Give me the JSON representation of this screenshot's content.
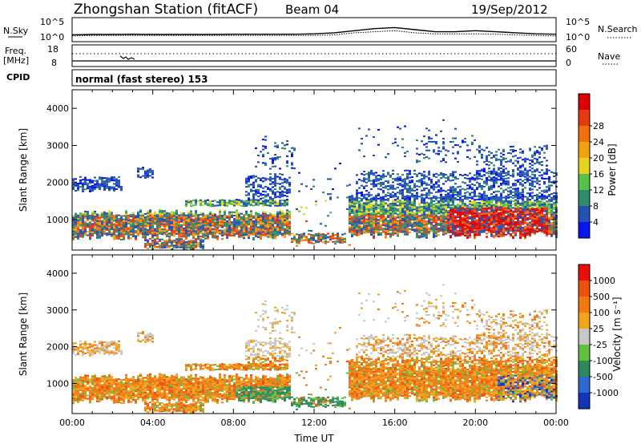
{
  "header": {
    "station": "Zhongshan Station (fitACF)",
    "beam": "Beam 04",
    "date": "19/Sep/2012"
  },
  "colors": {
    "power_scale": [
      "#0a14f0",
      "#2452b4",
      "#2e8c6a",
      "#57c24a",
      "#e7d21e",
      "#f2a20e",
      "#f07010",
      "#e83a10",
      "#e00000"
    ],
    "velocity_scale": [
      "#1434b8",
      "#2c6ad0",
      "#2d8a5c",
      "#60c040",
      "#c8c8c8",
      "#f2a41a",
      "#f07a10",
      "#ee5010",
      "#e81008"
    ]
  },
  "chart_data": [
    {
      "type": "line",
      "name": "status-sky-search",
      "left_label": "N.Sky",
      "right_label": "N.Search",
      "left_ticks": [
        "10^5",
        "10^0"
      ],
      "right_ticks": [
        "10^5",
        "10^0"
      ],
      "x": [
        0,
        1,
        2,
        3,
        4,
        5,
        6,
        7,
        8,
        9,
        10,
        11,
        12,
        13,
        14,
        15,
        16,
        17,
        18,
        19,
        20,
        21,
        22,
        23,
        24
      ],
      "sky_level": [
        0.25,
        0.27,
        0.27,
        0.28,
        0.27,
        0.27,
        0.27,
        0.27,
        0.28,
        0.28,
        0.28,
        0.28,
        0.3,
        0.35,
        0.45,
        0.55,
        0.6,
        0.5,
        0.4,
        0.4,
        0.45,
        0.4,
        0.35,
        0.3,
        0.28
      ],
      "search_level": [
        0.2,
        0.22,
        0.22,
        0.22,
        0.22,
        0.22,
        0.22,
        0.22,
        0.22,
        0.22,
        0.22,
        0.22,
        0.22,
        0.25,
        0.35,
        0.4,
        0.45,
        0.35,
        0.3,
        0.3,
        0.3,
        0.28,
        0.25,
        0.22,
        0.2
      ]
    },
    {
      "type": "line",
      "name": "status-freq-nave",
      "left_label": "Freq.",
      "left_unit": "[MHz]",
      "right_label": "Nave",
      "left_ticks": [
        "18",
        "8"
      ],
      "right_ticks": [
        "60",
        "0"
      ],
      "cpid_label": "CPID",
      "cpid_text": "normal (fast stereo) 153"
    },
    {
      "type": "heatmap",
      "name": "power-panel",
      "ylabel": "Slant Range [km]",
      "ylim": [
        180,
        4500
      ],
      "yticks": [
        1000,
        2000,
        3000,
        4000
      ],
      "xlim": [
        0,
        24
      ],
      "colorbar_label": "Power [dB]",
      "colorbar_ticks": [
        "4",
        "8",
        "12",
        "16",
        "20",
        "24",
        "28"
      ]
    },
    {
      "type": "heatmap",
      "name": "velocity-panel",
      "ylabel": "Slant Range [km]",
      "ylim": [
        180,
        4500
      ],
      "yticks": [
        1000,
        2000,
        3000,
        4000
      ],
      "xlim": [
        0,
        24
      ],
      "xticks": [
        "00:00",
        "04:00",
        "08:00",
        "12:00",
        "16:00",
        "20:00",
        "00:00"
      ],
      "xlabel": "Time UT",
      "colorbar_label": "Velocity [m s⁻¹]",
      "colorbar_ticks": [
        "1000",
        "500",
        "100",
        "25",
        "-25",
        "-100",
        "-500",
        "-1000"
      ]
    }
  ]
}
